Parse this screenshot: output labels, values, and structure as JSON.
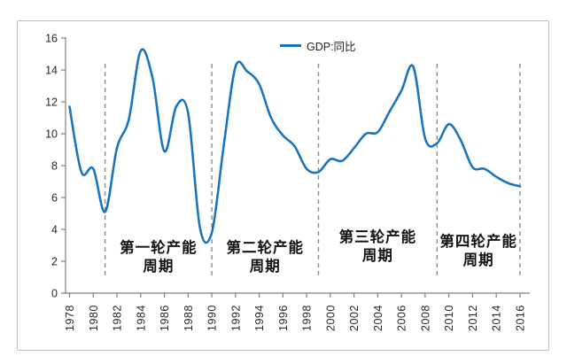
{
  "chart_data": {
    "type": "line",
    "title": "",
    "legend": [
      "GDP:同比"
    ],
    "legend_position": "top-center",
    "grid": false,
    "xlim": [
      1978,
      2016
    ],
    "ylim": [
      0,
      16
    ],
    "y_ticks": [
      0,
      2,
      4,
      6,
      8,
      10,
      12,
      14,
      16
    ],
    "x_tick_labels": [
      "1978",
      "1980",
      "1982",
      "1984",
      "1986",
      "1988",
      "1990",
      "1992",
      "1994",
      "1996",
      "1998",
      "2000",
      "2002",
      "2004",
      "2006",
      "2008",
      "2010",
      "2012",
      "2014",
      "2016"
    ],
    "x": [
      1978,
      1979,
      1980,
      1981,
      1982,
      1983,
      1984,
      1985,
      1986,
      1987,
      1988,
      1989,
      1990,
      1991,
      1992,
      1993,
      1994,
      1995,
      1996,
      1997,
      1998,
      1999,
      2000,
      2001,
      2002,
      2003,
      2004,
      2005,
      2006,
      2007,
      2008,
      2009,
      2010,
      2011,
      2012,
      2013,
      2014,
      2015,
      2016
    ],
    "series": [
      {
        "name": "GDP:同比",
        "color": "#1b75bc",
        "values": [
          11.7,
          7.6,
          7.8,
          5.1,
          9.1,
          10.9,
          15.2,
          13.5,
          8.9,
          11.7,
          11.3,
          4.1,
          3.8,
          9.2,
          14.2,
          13.9,
          13.1,
          11.0,
          9.9,
          9.2,
          7.8,
          7.6,
          8.4,
          8.3,
          9.1,
          10.0,
          10.1,
          11.4,
          12.7,
          14.2,
          9.7,
          9.4,
          10.6,
          9.6,
          7.9,
          7.8,
          7.3,
          6.9,
          6.7
        ]
      }
    ],
    "divider_years": [
      1981,
      1990,
      1999,
      2009,
      2016
    ],
    "divider_color": "#8c8c8c",
    "axis_color": "#7f7f7f",
    "annotations": [
      {
        "line1": "第一轮产能",
        "line2": "周期",
        "center_year": 1985.5
      },
      {
        "line1": "第二轮产能",
        "line2": "周期",
        "center_year": 1994.5
      },
      {
        "line1": "第三轮产能",
        "line2": "周期",
        "center_year": 2004.0
      },
      {
        "line1": "第四轮产能",
        "line2": "周期",
        "center_year": 2012.5
      }
    ]
  }
}
